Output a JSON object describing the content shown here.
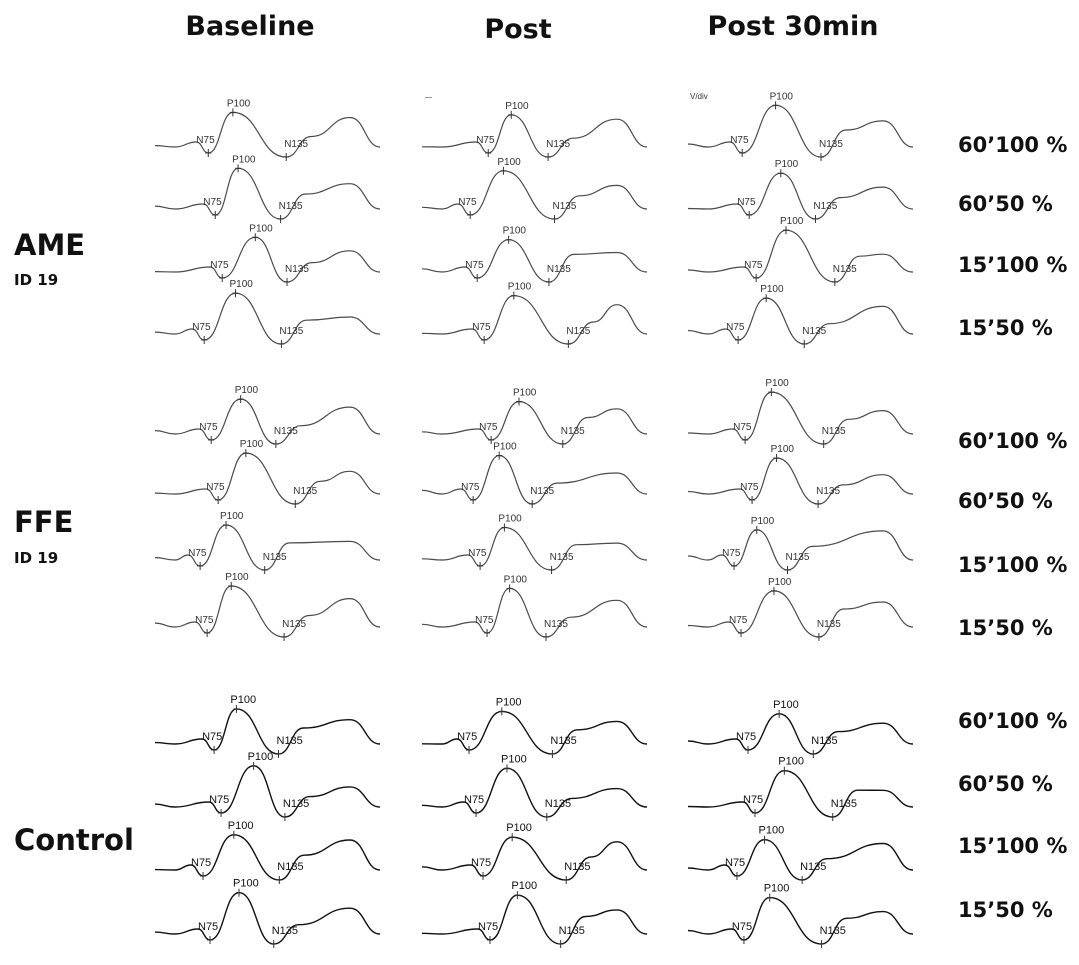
{
  "columns": [
    "Baseline",
    "Post",
    "Post 30min"
  ],
  "groups": [
    {
      "name": "AME",
      "id": "ID 19",
      "conditions": [
        "60’100 %",
        "60’50 %",
        "15’100 %",
        "15’50 %"
      ]
    },
    {
      "name": "FFE",
      "id": "ID 19",
      "conditions": [
        "60’100 %",
        "60’50 %",
        "15’100 %",
        "15’50 %"
      ]
    },
    {
      "name": "Control",
      "id": "",
      "conditions": [
        "60’100 %",
        "60’50 %",
        "15’100 %",
        "15’50 %"
      ]
    }
  ],
  "peak_labels": {
    "n75": "N75",
    "p100": "P100",
    "n135": "N135"
  },
  "axis_fragment": "V/div"
}
